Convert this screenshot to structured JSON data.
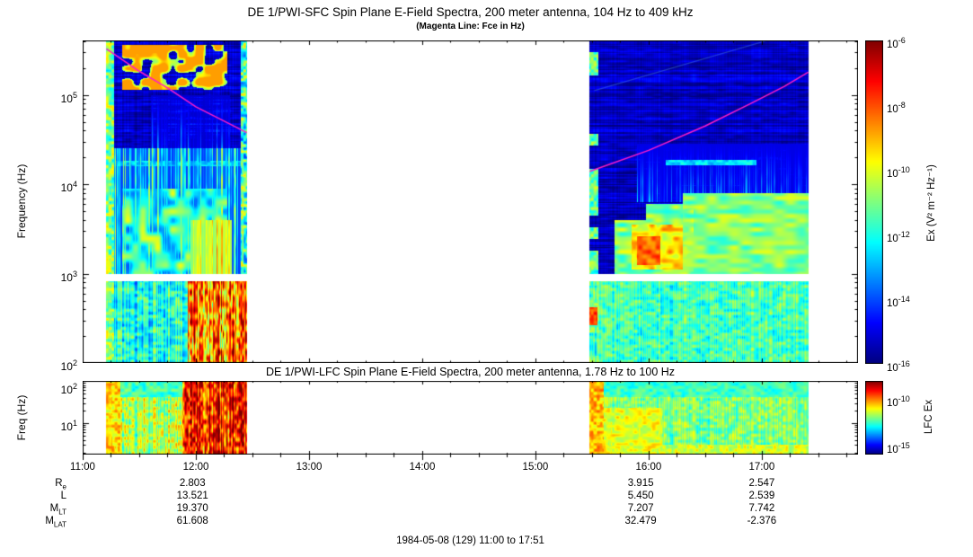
{
  "figure": {
    "footer": "1984-05-08 (129) 11:00 to 17:51",
    "background": "#ffffff"
  },
  "ephemeris": {
    "rows": [
      {
        "label": "R",
        "sub": "e",
        "values": [
          "2.803",
          "3.915",
          "2.547"
        ]
      },
      {
        "label": "L",
        "sub": "",
        "values": [
          "13.521",
          "5.450",
          "2.539"
        ]
      },
      {
        "label": "M",
        "sub": "LT",
        "values": [
          "19.370",
          "7.207",
          "7.742"
        ]
      },
      {
        "label": "M",
        "sub": "LAT",
        "values": [
          "61.608",
          "32.479",
          "-2.376"
        ]
      }
    ],
    "column_hours": [
      11.97,
      15.93,
      17.0
    ]
  },
  "chart_data": [
    {
      "type": "heatmap",
      "instrument": "DE 1/PWI-SFC",
      "title": "DE 1/PWI-SFC  Spin Plane E-Field Spectra, 200 meter antenna, 104 Hz to 409 kHz",
      "subtitle": "(Magenta Line: Fce in Hz)",
      "ylabel": "Frequency (Hz)",
      "yscale": "log",
      "log_base": 10,
      "ylim_hz": [
        100,
        409000
      ],
      "y_tick_exps": [
        2,
        3,
        4,
        5
      ],
      "time_range_hours": [
        11.0,
        17.85
      ],
      "x_tick_hours": [
        11,
        12,
        13,
        14,
        15,
        16,
        17
      ],
      "x_tick_labels": [
        "11:00",
        "12:00",
        "13:00",
        "14:00",
        "15:00",
        "16:00",
        "17:00"
      ],
      "segments_hours": [
        [
          11.21,
          12.45
        ],
        [
          15.48,
          17.41
        ]
      ],
      "data_gap_hours": [
        12.45,
        15.48
      ],
      "gap_band_hz": [
        830,
        1000
      ],
      "colorbar": {
        "label": "Ex (V² m⁻² Hz⁻¹)",
        "tick_exps": [
          -6,
          -8,
          -10,
          -12,
          -14,
          -16
        ],
        "top_exp": -6,
        "bottom_exp": -16
      },
      "fce_line": {
        "color": "#ff1dc8",
        "segments": [
          [
            [
              11.21,
              330000
            ],
            [
              11.5,
              185000
            ],
            [
              11.75,
              120000
            ],
            [
              12.0,
              74000
            ],
            [
              12.2,
              55000
            ],
            [
              12.45,
              38000
            ]
          ],
          [
            [
              15.48,
              14000
            ],
            [
              16.0,
              24000
            ],
            [
              16.5,
              45000
            ],
            [
              16.9,
              80000
            ],
            [
              17.2,
              125000
            ],
            [
              17.41,
              180000
            ]
          ]
        ]
      },
      "faint_diagonal": {
        "from": [
          15.52,
          5.05
        ],
        "to": [
          17.05,
          5.612
        ],
        "color": "rgba(70,130,230,0.45)"
      },
      "features": [
        {
          "t": [
            11.21,
            12.45
          ],
          "lf": [
            3.0,
            5.62
          ],
          "v": 0.07,
          "a": 0.05,
          "ra": 0.05,
          "ca": 0.03,
          "sx": 0.1,
          "sy": 0.4,
          "m": "noise"
        },
        {
          "t": [
            11.21,
            12.45
          ],
          "lf": [
            3.0,
            4.4
          ],
          "v": 0.18,
          "a": 0.5,
          "m": "streak",
          "p": 2.2
        },
        {
          "t": [
            11.35,
            12.28
          ],
          "lf": [
            3.0,
            3.95
          ],
          "v": 0.4,
          "a": 0.22,
          "sx": 0.12,
          "sy": 0.1,
          "m": "noise"
        },
        {
          "t": [
            11.95,
            12.32
          ],
          "lf": [
            3.0,
            3.6
          ],
          "v": 0.5,
          "a": 0.3,
          "m": "streak",
          "p": 1.5
        },
        {
          "t": [
            11.6,
            12.3
          ],
          "lf": [
            4.4,
            5.0
          ],
          "v": 0.08,
          "a": 0.3,
          "m": "streak",
          "p": 4,
          "fade": 1
        },
        {
          "t": [
            11.35,
            12.28
          ],
          "lf": [
            5.06,
            5.56
          ],
          "v": 0.5,
          "a": 0.22,
          "th": 0.4,
          "sx": 0.1,
          "sy": 0.13,
          "m": "patch"
        },
        {
          "t": [
            11.21,
            11.28
          ],
          "lf": [
            2.0,
            5.62
          ],
          "v": 0.5,
          "a": 0.18,
          "sx": 0.3,
          "sy": 0.3,
          "m": "noise"
        },
        {
          "t": [
            12.4,
            12.45
          ],
          "lf": [
            2.0,
            5.62
          ],
          "v": 0.42,
          "a": 0.26,
          "sx": 0.3,
          "sy": 0.3,
          "m": "noise"
        },
        {
          "t": [
            11.21,
            12.45
          ],
          "lf": [
            4.2,
            4.26
          ],
          "v": 0.32,
          "a": 0.1,
          "m": "noise"
        },
        {
          "t": [
            11.21,
            12.45
          ],
          "lf": [
            2.0,
            2.92
          ],
          "v": 0.4,
          "a": 0.12,
          "ca": 0.1,
          "sx": 0.2,
          "sy": 0.3,
          "m": "noise"
        },
        {
          "t": [
            11.93,
            12.45
          ],
          "lf": [
            2.0,
            2.92
          ],
          "v": 0.74,
          "a": 0.24,
          "ca": 0.14,
          "sx": 0.5,
          "sy": 0.15,
          "m": "noise"
        },
        {
          "t": [
            15.48,
            17.41
          ],
          "lf": [
            3.0,
            5.62
          ],
          "v": 0.06,
          "a": 0.04,
          "ra": 0.05,
          "ca": 0.02,
          "sx": 0.1,
          "sy": 0.4,
          "m": "noise"
        },
        {
          "t": [
            15.48,
            17.41
          ],
          "lf": [
            2.0,
            2.92
          ],
          "v": 0.44,
          "a": 0.1,
          "ca": 0.06,
          "sx": 0.2,
          "sy": 0.3,
          "m": "noise"
        },
        {
          "t": [
            15.7,
            16.05
          ],
          "lf": [
            3.0,
            3.6
          ],
          "v": 0.5,
          "a": 0.12,
          "sx": 0.1,
          "sy": 0.2,
          "m": "noise"
        },
        {
          "t": [
            15.98,
            16.4
          ],
          "lf": [
            3.0,
            3.78
          ],
          "v": 0.5,
          "a": 0.12,
          "sx": 0.1,
          "sy": 0.2,
          "m": "noise"
        },
        {
          "t": [
            16.3,
            17.41
          ],
          "lf": [
            3.0,
            3.9
          ],
          "v": 0.5,
          "a": 0.1,
          "sx": 0.08,
          "sy": 0.2,
          "m": "noise"
        },
        {
          "t": [
            15.85,
            16.3
          ],
          "lf": [
            3.05,
            3.55
          ],
          "v": 0.65,
          "a": 0.12,
          "sx": 0.15,
          "sy": 0.2,
          "m": "noise"
        },
        {
          "t": [
            15.9,
            16.1
          ],
          "lf": [
            3.1,
            3.42
          ],
          "v": 0.78,
          "a": 0.08,
          "sx": 0.2,
          "sy": 0.2,
          "m": "noise"
        },
        {
          "t": [
            15.9,
            17.41
          ],
          "lf": [
            3.8,
            4.45
          ],
          "v": 0.1,
          "a": 0.32,
          "m": "streak",
          "p": 2.0,
          "fade": 1
        },
        {
          "t": [
            16.15,
            16.95
          ],
          "lf": [
            4.21,
            4.27
          ],
          "v": 0.35,
          "a": 0.08,
          "m": "noise"
        },
        {
          "t": [
            15.48,
            15.56
          ],
          "lf": [
            2.0,
            5.62
          ],
          "v": 0.46,
          "a": 0.14,
          "m": "blocks",
          "bh": 13,
          "th": 0.35
        },
        {
          "t": [
            15.48,
            15.55
          ],
          "lf": [
            2.42,
            2.62
          ],
          "v": 0.82,
          "a": 0.08,
          "m": "noise"
        }
      ]
    },
    {
      "type": "heatmap",
      "instrument": "DE 1/PWI-LFC",
      "title": "DE 1/PWI-LFC  Spin Plane E-Field Spectra, 200 meter antenna, 1.78 Hz to 100 Hz",
      "ylabel": "Freq (Hz)",
      "yscale": "log",
      "log_base": 10,
      "ylim_hz": [
        1.78,
        100
      ],
      "y_tick_exps": [
        1,
        2
      ],
      "segments_hours": [
        [
          11.21,
          12.45
        ],
        [
          15.48,
          17.41
        ]
      ],
      "colorbar": {
        "label": "LFC Ex",
        "tick_exps": [
          -10,
          -15
        ],
        "top_exp": -8,
        "bottom_exp": -16
      },
      "features": [
        {
          "t": [
            11.21,
            12.45
          ],
          "lf": [
            0.25,
            2.0
          ],
          "v": 0.55,
          "a": 0.13,
          "ca": 0.1,
          "sx": 0.25,
          "sy": 0.3,
          "m": "noise"
        },
        {
          "t": [
            11.21,
            12.45
          ],
          "lf": [
            1.62,
            2.0
          ],
          "v": 0.44,
          "a": 0.1,
          "sx": 0.25,
          "sy": 0.3,
          "m": "noise",
          "op": "set"
        },
        {
          "t": [
            11.21,
            11.33
          ],
          "lf": [
            0.25,
            2.0
          ],
          "v": 0.66,
          "a": 0.12,
          "sx": 0.3,
          "sy": 0.3,
          "m": "noise"
        },
        {
          "t": [
            11.88,
            12.45
          ],
          "lf": [
            0.25,
            2.0
          ],
          "v": 0.84,
          "a": 0.2,
          "ca": 0.12,
          "sx": 0.5,
          "sy": 0.2,
          "m": "noise"
        },
        {
          "t": [
            15.48,
            17.41
          ],
          "lf": [
            0.25,
            2.0
          ],
          "v": 0.5,
          "a": 0.1,
          "ca": 0.06,
          "sx": 0.25,
          "sy": 0.3,
          "m": "noise"
        },
        {
          "t": [
            15.48,
            16.12
          ],
          "lf": [
            0.25,
            1.35
          ],
          "v": 0.6,
          "a": 0.1,
          "sx": 0.2,
          "sy": 0.3,
          "m": "noise"
        },
        {
          "t": [
            15.48,
            17.41
          ],
          "lf": [
            1.62,
            2.0
          ],
          "v": 0.43,
          "a": 0.08,
          "sx": 0.25,
          "sy": 0.3,
          "m": "noise",
          "op": "set"
        },
        {
          "t": [
            15.48,
            17.41
          ],
          "lf": [
            0.25,
            0.48
          ],
          "v": 0.58,
          "a": 0.1,
          "sx": 0.3,
          "sy": 0.3,
          "m": "noise"
        },
        {
          "t": [
            15.48,
            15.6
          ],
          "lf": [
            0.25,
            2.0
          ],
          "v": 0.68,
          "a": 0.12,
          "sx": 0.3,
          "sy": 0.3,
          "m": "noise"
        }
      ]
    }
  ]
}
